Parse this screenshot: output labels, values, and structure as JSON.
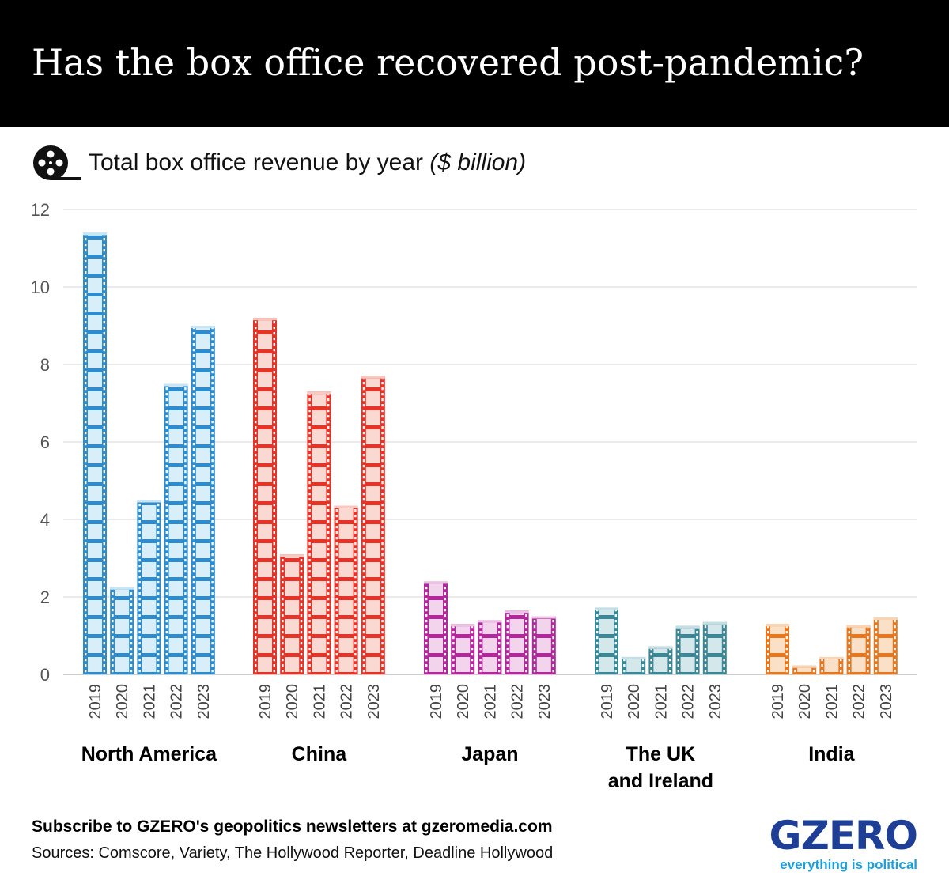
{
  "header": {
    "title": "Has the box office recovered post-pandemic?"
  },
  "subtitle": {
    "text": "Total box office revenue by year ",
    "unit": "($ billion)",
    "icon": "film-reel-icon"
  },
  "footer": {
    "cta": "Subscribe to GZERO's geopolitics newsletters at gzeromedia.com",
    "sources": "Sources: Comscore, Variety, The Hollywood Reporter, Deadline Hollywood"
  },
  "brand": {
    "logo": "GZERO",
    "tagline": "everything is political"
  },
  "chart_data": {
    "type": "bar",
    "title": "Has the box office recovered post-pandemic?",
    "ylabel": "Total box office revenue by year ($ billion)",
    "ylim": [
      0,
      12
    ],
    "yticks": [
      0,
      2,
      4,
      6,
      8,
      10,
      12
    ],
    "grid": true,
    "categories": [
      "2019",
      "2020",
      "2021",
      "2022",
      "2023"
    ],
    "groups": [
      {
        "name": "North America",
        "name_lines": [
          "North America"
        ],
        "color": "#2e8ccc",
        "fill": "#d8eef8",
        "values": [
          11.4,
          2.25,
          4.5,
          7.5,
          9.0
        ]
      },
      {
        "name": "China",
        "name_lines": [
          "China"
        ],
        "color": "#e63327",
        "fill": "#fbd9d3",
        "values": [
          9.2,
          3.1,
          7.3,
          4.35,
          7.7
        ]
      },
      {
        "name": "Japan",
        "name_lines": [
          "Japan"
        ],
        "color": "#b4279c",
        "fill": "#f2d4ec",
        "values": [
          2.4,
          1.3,
          1.4,
          1.65,
          1.5
        ]
      },
      {
        "name": "The UK and Ireland",
        "name_lines": [
          "The UK",
          "and Ireland"
        ],
        "color": "#3a8797",
        "fill": "#d4e8ec",
        "values": [
          1.72,
          0.45,
          0.72,
          1.25,
          1.35
        ]
      },
      {
        "name": "India",
        "name_lines": [
          "India"
        ],
        "color": "#e7761c",
        "fill": "#fbe0c8",
        "values": [
          1.3,
          0.23,
          0.45,
          1.27,
          1.47
        ]
      }
    ]
  }
}
